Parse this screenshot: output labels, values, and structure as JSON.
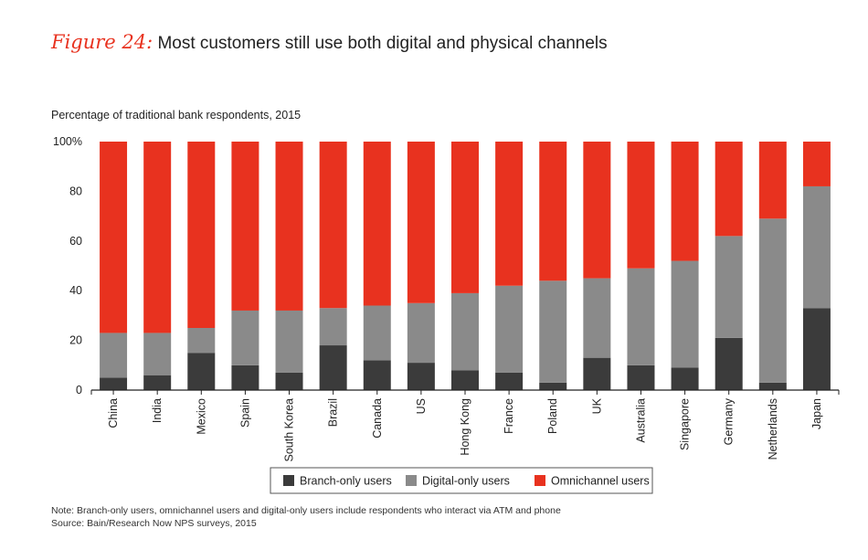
{
  "figure_label": "Figure 24:",
  "figure_title": "Most customers still use both digital and physical channels",
  "subtitle": "Percentage of traditional bank respondents, 2015",
  "note": "Note: Branch-only users, omnichannel users and digital-only users include respondents who interact via ATM and phone",
  "source": "Source: Bain/Research Now NPS surveys, 2015",
  "colors": {
    "branch": "#3b3b3b",
    "digital": "#8a8a8a",
    "omni": "#e8321f",
    "axis": "#222222"
  },
  "chart_data": {
    "type": "bar",
    "stacked": true,
    "categories": [
      "China",
      "India",
      "Mexico",
      "Spain",
      "South Korea",
      "Brazil",
      "Canada",
      "US",
      "Hong Kong",
      "France",
      "Poland",
      "UK",
      "Australia",
      "Singapore",
      "Germany",
      "Netherlands",
      "Japan"
    ],
    "series": [
      {
        "name": "Branch-only users",
        "values": [
          5,
          6,
          15,
          10,
          7,
          18,
          12,
          11,
          8,
          7,
          3,
          13,
          10,
          9,
          21,
          3,
          33
        ]
      },
      {
        "name": "Digital-only users",
        "values": [
          18,
          17,
          10,
          22,
          25,
          15,
          22,
          24,
          31,
          35,
          41,
          32,
          39,
          43,
          41,
          66,
          49
        ]
      },
      {
        "name": "Omnichannel users",
        "values": [
          77,
          77,
          75,
          68,
          68,
          67,
          66,
          65,
          61,
          58,
          56,
          55,
          51,
          48,
          38,
          31,
          18
        ]
      }
    ],
    "yticks": [
      "0",
      "20",
      "40",
      "60",
      "80",
      "100%"
    ],
    "ylim": [
      0,
      100
    ],
    "xlabel": "",
    "ylabel": "",
    "legend_position": "bottom-center",
    "title": "Most customers still use both digital and physical channels"
  }
}
